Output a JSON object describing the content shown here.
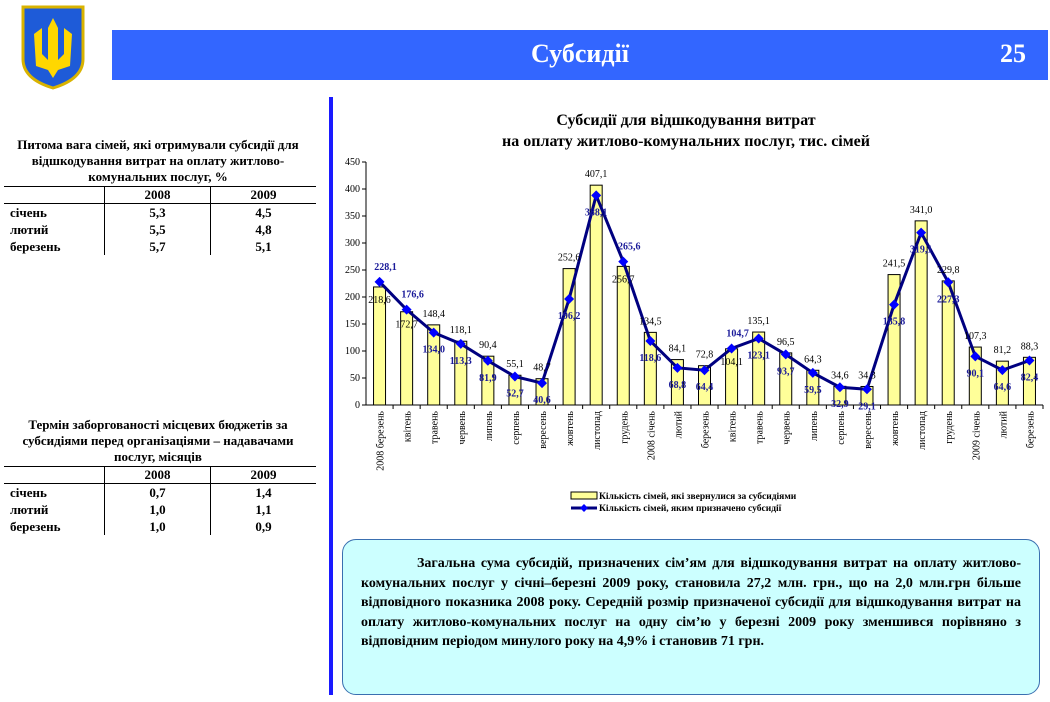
{
  "header": {
    "title": "Субсидії",
    "page_number": "25"
  },
  "colors": {
    "banner": "#3366ff",
    "bars": "#ffff99",
    "line": "#000080",
    "markers": "#0000ff",
    "note_bg": "#ccffff"
  },
  "table1": {
    "title": "Питома вага сімей, які отримували субсидії для відшкодування витрат на оплату житлово-комунальних послуг, %",
    "columns": [
      "",
      "2008",
      "2009"
    ],
    "rows": [
      [
        "січень",
        "5,3",
        "4,5"
      ],
      [
        "лютий",
        "5,5",
        "4,8"
      ],
      [
        "березень",
        "5,7",
        "5,1"
      ]
    ]
  },
  "table2": {
    "title": "Термін заборгованості місцевих бюджетів за субсидіями перед організаціями – надавачами послуг, місяців",
    "columns": [
      "",
      "2008",
      "2009"
    ],
    "rows": [
      [
        "січень",
        "0,7",
        "1,4"
      ],
      [
        "лютий",
        "1,0",
        "1,1"
      ],
      [
        "березень",
        "1,0",
        "0,9"
      ]
    ]
  },
  "chart_data": {
    "type": "bar+line",
    "title": [
      "Субсидії для відшкодування витрат",
      "на оплату житлово-комунальних послуг, тис. сімей"
    ],
    "ylim": [
      0,
      450
    ],
    "yticks": [
      0,
      50,
      100,
      150,
      200,
      250,
      300,
      350,
      400,
      450
    ],
    "grid": false,
    "legend": "bottom",
    "categories": [
      "2008 березень",
      "квітень",
      "травень",
      "червень",
      "липень",
      "серпень",
      "вересень",
      "жовтень",
      "листопад",
      "грудень",
      "2008 січень",
      "лютий",
      "березень",
      "квітень",
      "травень",
      "червень",
      "липень",
      "серпень",
      "вересень",
      "жовтень",
      "листопад",
      "грудень",
      "2009 січень",
      "лютий",
      "березень"
    ],
    "series": [
      {
        "name": "Кількість сімей, які звернулися за субсидіями",
        "type": "bar",
        "values": [
          218.6,
          172.7,
          148.4,
          118.1,
          90.4,
          55.1,
          48.7,
          252.6,
          407.1,
          256.7,
          134.5,
          84.1,
          72.8,
          104.1,
          135.1,
          96.5,
          64.3,
          34.6,
          34.3,
          241.5,
          341.0,
          229.8,
          107.3,
          81.2,
          88.3
        ],
        "labels": [
          "218,6",
          "172,7",
          "148,4",
          "118,1",
          "90,4",
          "55,1",
          "48,7",
          "252,6",
          "407,1",
          "256,7",
          "134,5",
          "84,1",
          "72,8",
          "104,1",
          "135,1",
          "96,5",
          "64,3",
          "34,6",
          "34,3",
          "241,5",
          "341,0",
          "229,8",
          "107,3",
          "81,2",
          "88,3"
        ]
      },
      {
        "name": "Кількість сімей, яким призначено субсидії",
        "type": "line",
        "values": [
          228.1,
          176.6,
          134.0,
          113.3,
          81.9,
          52.7,
          40.6,
          196.2,
          388.1,
          265.6,
          118.6,
          68.8,
          64.4,
          104.7,
          123.1,
          93.7,
          59.5,
          32.9,
          29.1,
          185.8,
          319.1,
          227.3,
          90.1,
          64.6,
          82.4
        ],
        "labels": [
          "228,1",
          "176,6",
          "134,0",
          "113,3",
          "81,9",
          "52,7",
          "40,6",
          "196,2",
          "388,1",
          "265,6",
          "118,6",
          "68,8",
          "64,4",
          "104,7",
          "123,1",
          "93,7",
          "59,5",
          "32,9",
          "29,1",
          "185,8",
          "319,1",
          "227,3",
          "90,1",
          "64,6",
          "82,4"
        ]
      }
    ]
  },
  "note": "Загальна сума субсидій, призначених сім’ям для відшкодування витрат на оплату житлово-комунальних послуг у січні–березні 2009 року, становила 27,2 млн. грн., що на 2,0 млн.грн більше відповідного показника 2008 року. Середній розмір призначеної субсидії для відшкодування витрат на оплату житлово-комунальних послуг на одну сім’ю у березні 2009 року зменшився  порівняно з відповідним періодом минулого року на 4,9% і становив 71 грн."
}
